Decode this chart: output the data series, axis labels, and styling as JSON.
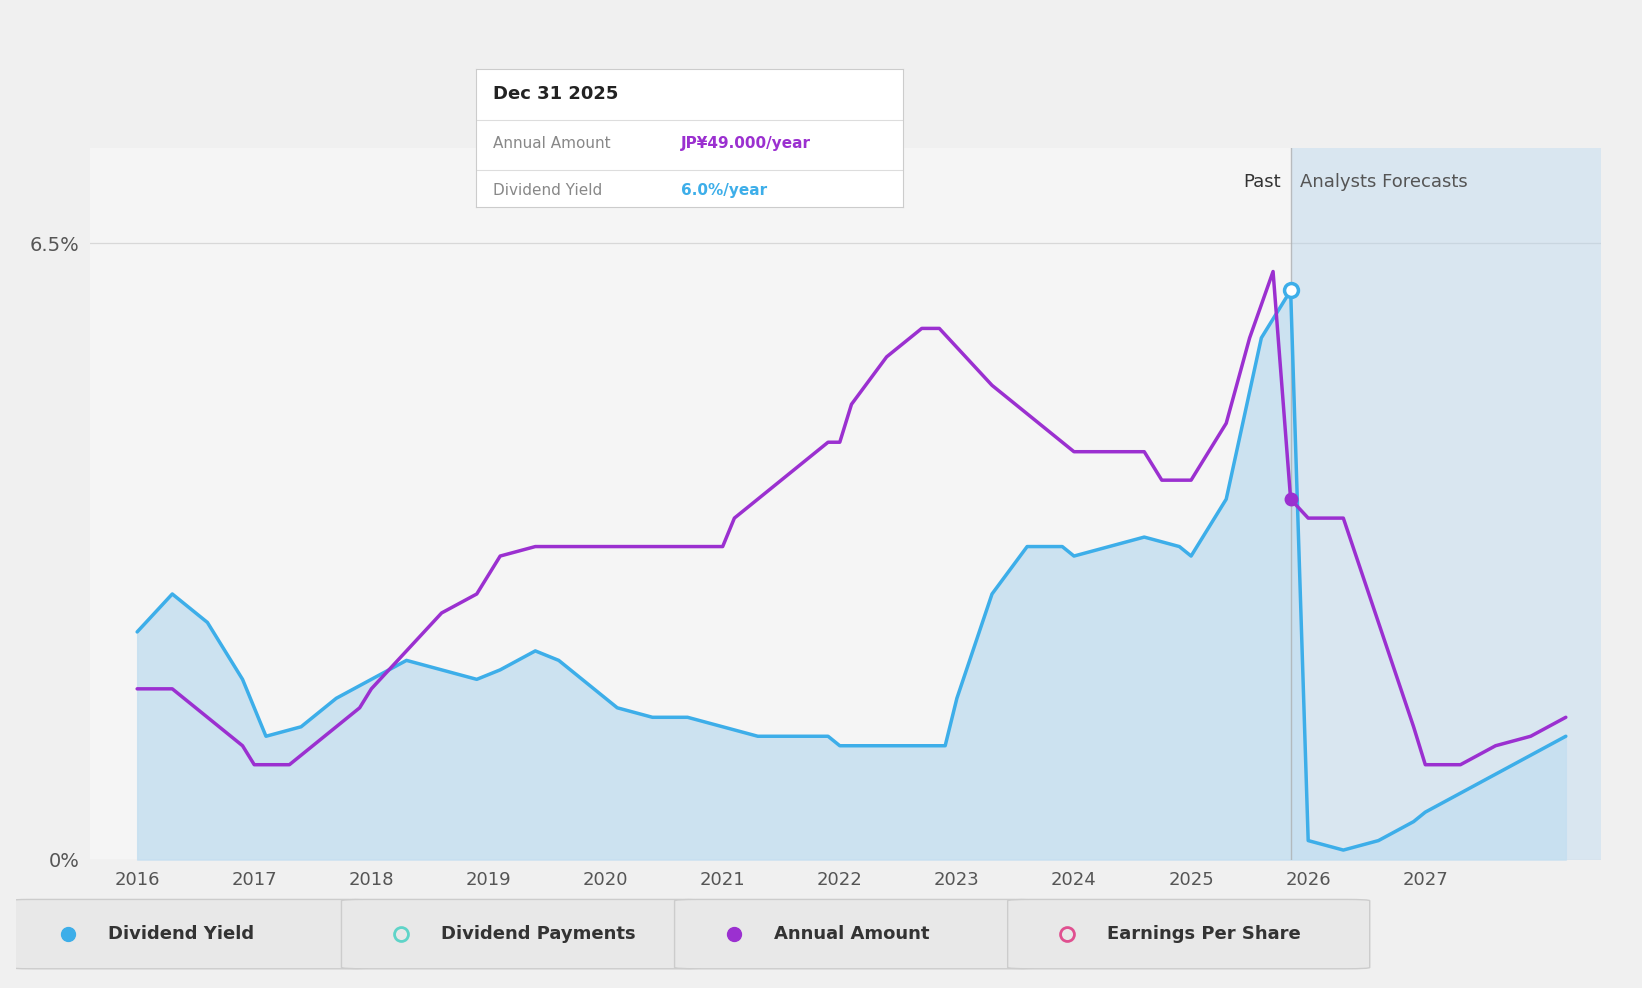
{
  "bg_color": "#f0f0f0",
  "plot_bg_color": "#f5f5f5",
  "dividend_yield_color": "#3daee9",
  "annual_amount_color": "#9b30d0",
  "dividend_yield_fill_color": "#c8dff0",
  "forecast_region_color": "#c8dff0",
  "grid_color": "#d8d8d8",
  "past_divider": 2025.85,
  "tooltip_title": "Dec 31 2025",
  "tooltip_annual": "JP¥49.000",
  "tooltip_yield": "6.0%",
  "tooltip_annual_color": "#9b30d0",
  "tooltip_yield_color": "#3daee9",
  "past_label": "Past",
  "forecast_label": "Analysts Forecasts",
  "ylim": [
    0,
    0.075
  ],
  "xlim": [
    2015.6,
    2028.5
  ],
  "xticks": [
    2016,
    2017,
    2018,
    2019,
    2020,
    2021,
    2022,
    2023,
    2024,
    2025,
    2026,
    2027
  ],
  "dividend_yield_x": [
    2016.0,
    2016.3,
    2016.6,
    2016.9,
    2017.1,
    2017.4,
    2017.7,
    2018.0,
    2018.3,
    2018.6,
    2018.9,
    2019.1,
    2019.4,
    2019.6,
    2019.9,
    2020.1,
    2020.4,
    2020.7,
    2021.0,
    2021.3,
    2021.6,
    2021.9,
    2022.0,
    2022.3,
    2022.6,
    2022.9,
    2023.0,
    2023.3,
    2023.6,
    2023.9,
    2024.0,
    2024.3,
    2024.6,
    2024.9,
    2025.0,
    2025.3,
    2025.6,
    2025.85,
    2026.0,
    2026.3,
    2026.6,
    2026.9,
    2027.0,
    2027.3,
    2027.6,
    2027.9,
    2028.2
  ],
  "dividend_yield_y": [
    0.024,
    0.028,
    0.025,
    0.019,
    0.013,
    0.014,
    0.017,
    0.019,
    0.021,
    0.02,
    0.019,
    0.02,
    0.022,
    0.021,
    0.018,
    0.016,
    0.015,
    0.015,
    0.014,
    0.013,
    0.013,
    0.013,
    0.012,
    0.012,
    0.012,
    0.012,
    0.017,
    0.028,
    0.033,
    0.033,
    0.032,
    0.033,
    0.034,
    0.033,
    0.032,
    0.038,
    0.055,
    0.06,
    0.002,
    0.001,
    0.002,
    0.004,
    0.005,
    0.007,
    0.009,
    0.011,
    0.013
  ],
  "annual_amount_x": [
    2016.0,
    2016.3,
    2016.6,
    2016.9,
    2017.0,
    2017.3,
    2017.6,
    2017.9,
    2018.0,
    2018.3,
    2018.6,
    2018.9,
    2019.0,
    2019.1,
    2019.4,
    2019.7,
    2019.9,
    2020.0,
    2020.3,
    2020.6,
    2020.9,
    2021.0,
    2021.1,
    2021.4,
    2021.7,
    2021.9,
    2022.0,
    2022.1,
    2022.4,
    2022.7,
    2022.85,
    2023.0,
    2023.3,
    2023.6,
    2023.9,
    2024.0,
    2024.3,
    2024.6,
    2024.75,
    2024.9,
    2025.0,
    2025.3,
    2025.5,
    2025.7,
    2025.85,
    2026.0,
    2026.3,
    2026.6,
    2026.9,
    2027.0,
    2027.3,
    2027.6,
    2027.9,
    2028.2
  ],
  "annual_amount_y": [
    0.018,
    0.018,
    0.015,
    0.012,
    0.01,
    0.01,
    0.013,
    0.016,
    0.018,
    0.022,
    0.026,
    0.028,
    0.03,
    0.032,
    0.033,
    0.033,
    0.033,
    0.033,
    0.033,
    0.033,
    0.033,
    0.033,
    0.036,
    0.039,
    0.042,
    0.044,
    0.044,
    0.048,
    0.053,
    0.056,
    0.056,
    0.054,
    0.05,
    0.047,
    0.044,
    0.043,
    0.043,
    0.043,
    0.04,
    0.04,
    0.04,
    0.046,
    0.055,
    0.062,
    0.038,
    0.036,
    0.036,
    0.025,
    0.014,
    0.01,
    0.01,
    0.012,
    0.013,
    0.015
  ],
  "legend_items": [
    {
      "label": "Dividend Yield",
      "color": "#3daee9",
      "filled": true
    },
    {
      "label": "Dividend Payments",
      "color": "#5fd4c8",
      "filled": false
    },
    {
      "label": "Annual Amount",
      "color": "#9b30d0",
      "filled": true
    },
    {
      "label": "Earnings Per Share",
      "color": "#e05090",
      "filled": false
    }
  ]
}
